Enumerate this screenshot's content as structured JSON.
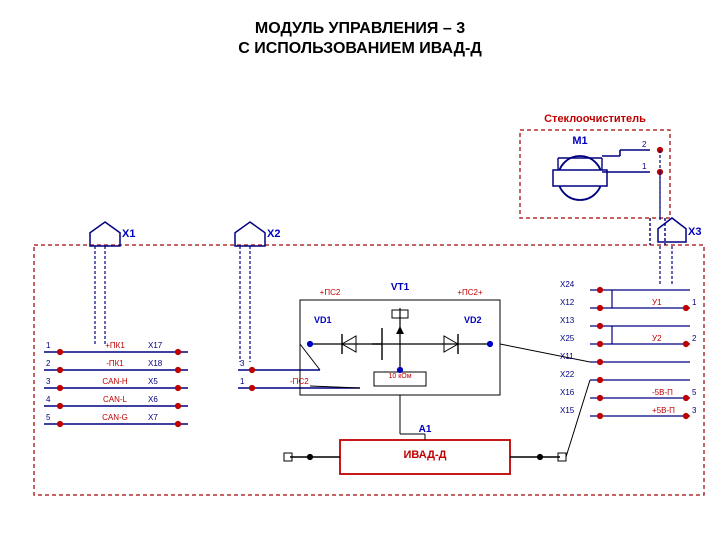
{
  "title_line1": "МОДУЛЬ УПРАВЛЕНИЯ – 3",
  "title_line2": "С ИСПОЛЬЗОВАНИЕМ ИВАД-Д",
  "title_fontsize": 16,
  "title_color": "#000000",
  "motor_section_label": "Стеклоочиститель",
  "motor_label": "M1",
  "motor_pin1": "1",
  "motor_pin2": "2",
  "conn_x1": "X1",
  "conn_x2": "X2",
  "conn_x3": "X3",
  "vt1": "VT1",
  "vd1": "VD1",
  "vd2": "VD2",
  "plus_pc2_left": "+ПС2",
  "plus_pc2_right": "+ПС2+",
  "minus_pc2": "-ПС2",
  "resistor_label": "10 кОм",
  "a1_label": "A1",
  "ivad_label": "ИВАД-Д",
  "left_rows": [
    {
      "num": "1",
      "sig": "+ПК1",
      "pin": "X17"
    },
    {
      "num": "2",
      "sig": "-ПК1",
      "pin": "X18"
    },
    {
      "num": "3",
      "sig": "CAN-H",
      "pin": "X5"
    },
    {
      "num": "4",
      "sig": "CAN-L",
      "pin": "X6"
    },
    {
      "num": "5",
      "sig": "CAN-G",
      "pin": "X7"
    }
  ],
  "x2_rows": [
    {
      "num": "3",
      "pin": ""
    },
    {
      "num": "1",
      "pin": "",
      "sig": "-ПС2"
    }
  ],
  "right_rows": [
    {
      "pin": "X24",
      "num": ""
    },
    {
      "pin": "X12",
      "num": "1",
      "out": "У1"
    },
    {
      "pin": "X13",
      "num": ""
    },
    {
      "pin": "X25",
      "num": "2",
      "out": "У2"
    },
    {
      "pin": "X11",
      "num": ""
    },
    {
      "pin": "X22",
      "num": ""
    },
    {
      "pin": "X16",
      "num": "5",
      "out": "-5В-П"
    },
    {
      "pin": "X15",
      "num": "3",
      "out": "+5В-П"
    }
  ],
  "colors": {
    "dashed": "#b03030",
    "line": "#000080",
    "red": "#c00000",
    "blue": "#0000c0",
    "text": "#000080"
  },
  "fonts": {
    "small": 9,
    "tiny": 8
  }
}
